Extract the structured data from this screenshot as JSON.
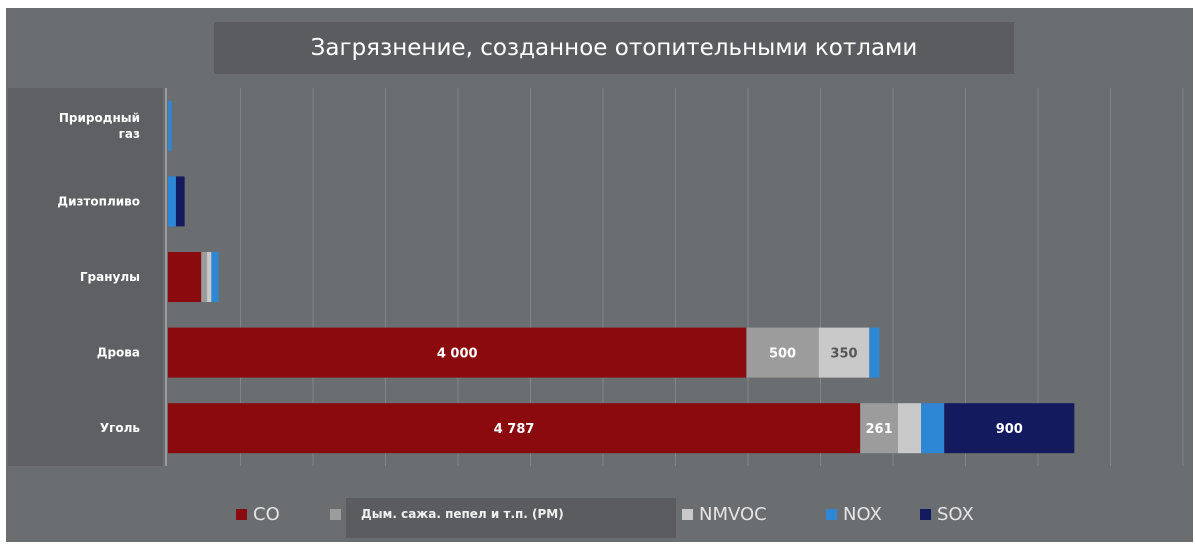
{
  "chart_data": {
    "type": "bar",
    "orientation": "horizontal",
    "stacked": true,
    "title": "Загрязнение, созданное отопительными котлами",
    "categories": [
      "Природный газ",
      "Дизтопливо",
      "Гранулы",
      "Дрова",
      "Уголь"
    ],
    "series": [
      {
        "name": "CO",
        "color": "#8b0a0e",
        "values": [
          0,
          0,
          230,
          4000,
          4787
        ],
        "labels": [
          "",
          "",
          "",
          "4 000",
          "4 787"
        ]
      },
      {
        "name": "Дым. сажа. пепел и т.п. (PM)",
        "color": "#9c9c9c",
        "values": [
          0,
          0,
          40,
          500,
          261
        ],
        "labels": [
          "",
          "",
          "",
          "500",
          "261"
        ]
      },
      {
        "name": "NMVOC",
        "color": "#c9c9c9",
        "values": [
          0,
          0,
          30,
          350,
          160
        ],
        "labels": [
          "",
          "",
          "",
          "350",
          ""
        ]
      },
      {
        "name": "NOX",
        "color": "#2e87d4",
        "values": [
          25,
          55,
          50,
          70,
          160
        ],
        "labels": [
          "",
          "",
          "",
          "",
          ""
        ]
      },
      {
        "name": "SOX",
        "color": "#141a5e",
        "values": [
          0,
          60,
          0,
          0,
          900
        ],
        "labels": [
          "",
          "",
          "",
          "",
          "900"
        ]
      }
    ],
    "xlim": [
      0,
      7000
    ],
    "grid": true,
    "legend": "bottom"
  }
}
